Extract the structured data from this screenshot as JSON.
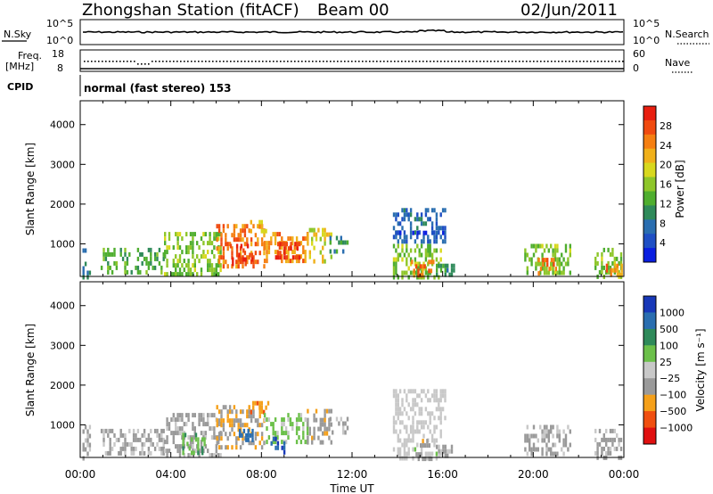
{
  "header": {
    "title": "Zhongshan Station (fitACF)",
    "beam": "Beam 00",
    "date": "02/Jun/2011"
  },
  "noise_panel": {
    "left_label": "N.Sky",
    "right_label": "N.Search",
    "left_ticks": [
      "10^5",
      "10^0"
    ],
    "right_ticks": [
      "10^5",
      "10^0"
    ]
  },
  "freq_panel": {
    "left_label_1": "Freq.",
    "left_label_2": "[MHz]",
    "right_label": "Nave",
    "left_ticks": [
      "18",
      "8"
    ],
    "right_ticks": [
      "60",
      "0"
    ]
  },
  "cpid": {
    "label": "CPID",
    "value": "normal (fast stereo) 153"
  },
  "x_axis": {
    "label": "Time UT",
    "ticks": [
      "00:00",
      "04:00",
      "08:00",
      "12:00",
      "16:00",
      "20:00",
      "00:00"
    ]
  },
  "colors": {
    "power": [
      "#0a1ee0",
      "#1f4fc4",
      "#2a6eb0",
      "#2f8a5a",
      "#4fae2f",
      "#8ec62a",
      "#d8d81e",
      "#f0b01a",
      "#f57f12",
      "#f04a10",
      "#e81e10"
    ],
    "velocity": [
      "#e01010",
      "#f04f10",
      "#f5a01a",
      "#9a9a9a",
      "#c8c8c8",
      "#6cc04a",
      "#2f8a5a",
      "#2a6eb0",
      "#1838b8"
    ]
  },
  "chart_data": [
    {
      "type": "line",
      "panel": "noise",
      "ylabel_left": "N.Sky",
      "ylabel_right": "N.Search",
      "x": [
        "00:00",
        "04:00",
        "08:00",
        "12:00",
        "16:00",
        "20:00",
        "00:00"
      ],
      "series": [
        {
          "name": "N.Sky",
          "values": [
            10000,
            10000,
            12000,
            10000,
            15000,
            10000,
            10000
          ]
        }
      ]
    },
    {
      "type": "scatter",
      "panel": "frequency",
      "ylabel_left": "Freq. [MHz]",
      "ylabel_right": "Nave",
      "ylim_left": [
        8,
        18
      ],
      "ylim_right": [
        0,
        60
      ],
      "series": [
        {
          "name": "Freq.",
          "values": [
            12
          ]
        },
        {
          "name": "Nave",
          "values": [
            1
          ]
        }
      ]
    },
    {
      "type": "heatmap",
      "panel": "power",
      "ylabel": "Slant Range [km]",
      "xlabel": "Time UT",
      "x_range_hours": [
        0,
        24
      ],
      "ylim": [
        180,
        4600
      ],
      "yticks": [
        "1000",
        "2000",
        "3000",
        "4000"
      ],
      "colorbar": {
        "label": "Power [dB]",
        "ticks": [
          "4",
          "8",
          "12",
          "16",
          "20",
          "24",
          "28"
        ],
        "range": [
          0,
          30
        ]
      },
      "regions": [
        {
          "t": [
            0.1,
            0.4
          ],
          "r": [
            180,
            1000
          ],
          "value": 8
        },
        {
          "t": [
            0.9,
            3.7
          ],
          "r": [
            300,
            900
          ],
          "value": 12
        },
        {
          "t": [
            3.7,
            6.2
          ],
          "r": [
            180,
            1300
          ],
          "value": 14
        },
        {
          "t": [
            6.0,
            8.1
          ],
          "r": [
            400,
            1500
          ],
          "value": 24
        },
        {
          "t": [
            6.6,
            7.6
          ],
          "r": [
            500,
            1000
          ],
          "value": 28
        },
        {
          "t": [
            7.5,
            8.3
          ],
          "r": [
            1300,
            1600
          ],
          "value": 20
        },
        {
          "t": [
            8.1,
            10.0
          ],
          "r": [
            600,
            1300
          ],
          "value": 22
        },
        {
          "t": [
            8.6,
            9.7
          ],
          "r": [
            650,
            1050
          ],
          "value": 28
        },
        {
          "t": [
            10.0,
            11.1
          ],
          "r": [
            600,
            1400
          ],
          "value": 18
        },
        {
          "t": [
            11.0,
            11.8
          ],
          "r": [
            800,
            1200
          ],
          "value": 10
        },
        {
          "t": [
            13.8,
            16.1
          ],
          "r": [
            1100,
            1900
          ],
          "value": 6
        },
        {
          "t": [
            13.9,
            16.0
          ],
          "r": [
            1250,
            1330
          ],
          "value": 3
        },
        {
          "t": [
            13.8,
            15.9
          ],
          "r": [
            180,
            1000
          ],
          "value": 14
        },
        {
          "t": [
            14.6,
            15.6
          ],
          "r": [
            180,
            600
          ],
          "value": 24
        },
        {
          "t": [
            15.7,
            16.5
          ],
          "r": [
            180,
            500
          ],
          "value": 10
        },
        {
          "t": [
            19.6,
            21.6
          ],
          "r": [
            300,
            1000
          ],
          "value": 14
        },
        {
          "t": [
            20.2,
            21.0
          ],
          "r": [
            300,
            650
          ],
          "value": 24
        },
        {
          "t": [
            22.7,
            23.9
          ],
          "r": [
            180,
            900
          ],
          "value": 14
        },
        {
          "t": [
            23.2,
            23.9
          ],
          "r": [
            180,
            500
          ],
          "value": 22
        }
      ]
    },
    {
      "type": "heatmap",
      "panel": "velocity",
      "ylabel": "Slant Range [km]",
      "xlabel": "Time UT",
      "x_range_hours": [
        0,
        24
      ],
      "ylim": [
        180,
        4600
      ],
      "yticks": [
        "1000",
        "2000",
        "3000",
        "4000"
      ],
      "colorbar": {
        "label": "Velocity [m s⁻¹]",
        "ticks": [
          "1000",
          "500",
          "100",
          "25",
          "−25",
          "−100",
          "−500",
          "−1000"
        ],
        "range": [
          -1200,
          1200
        ]
      },
      "regions": [
        {
          "t": [
            0.1,
            0.4
          ],
          "r": [
            180,
            1000
          ],
          "value": -200
        },
        {
          "t": [
            0.9,
            3.7
          ],
          "r": [
            300,
            900
          ],
          "value": -150
        },
        {
          "t": [
            3.7,
            6.2
          ],
          "r": [
            180,
            1300
          ],
          "value": -200
        },
        {
          "t": [
            4.5,
            5.5
          ],
          "r": [
            350,
            800
          ],
          "value": 400
        },
        {
          "t": [
            6.0,
            8.1
          ],
          "r": [
            400,
            1500
          ],
          "value": -400
        },
        {
          "t": [
            7.0,
            7.6
          ],
          "r": [
            600,
            900
          ],
          "value": 800
        },
        {
          "t": [
            7.5,
            8.3
          ],
          "r": [
            1300,
            1600
          ],
          "value": -600
        },
        {
          "t": [
            8.1,
            10.0
          ],
          "r": [
            600,
            1300
          ],
          "value": 200
        },
        {
          "t": [
            8.4,
            9.0
          ],
          "r": [
            350,
            700
          ],
          "value": 900
        },
        {
          "t": [
            10.0,
            11.1
          ],
          "r": [
            600,
            1400
          ],
          "value": -300
        },
        {
          "t": [
            11.0,
            11.8
          ],
          "r": [
            800,
            1200
          ],
          "value": -150
        },
        {
          "t": [
            13.8,
            16.1
          ],
          "r": [
            1100,
            1900
          ],
          "value": 0
        },
        {
          "t": [
            13.8,
            15.9
          ],
          "r": [
            180,
            1000
          ],
          "value": 15
        },
        {
          "t": [
            14.8,
            15.6
          ],
          "r": [
            180,
            650
          ],
          "value": -300
        },
        {
          "t": [
            15.7,
            16.5
          ],
          "r": [
            180,
            500
          ],
          "value": -150
        },
        {
          "t": [
            19.6,
            21.6
          ],
          "r": [
            300,
            1000
          ],
          "value": -200
        },
        {
          "t": [
            22.7,
            23.9
          ],
          "r": [
            180,
            900
          ],
          "value": -200
        }
      ]
    }
  ]
}
